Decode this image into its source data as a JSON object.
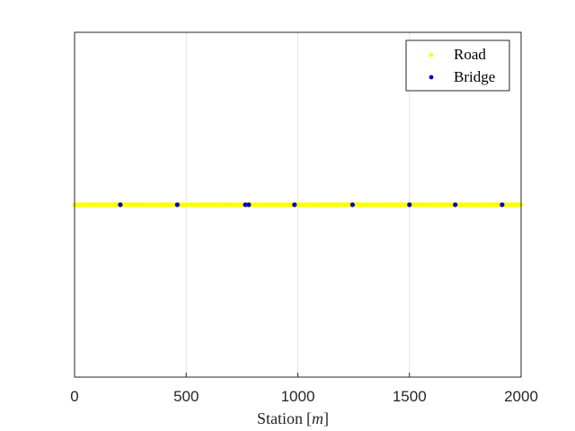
{
  "chart_data": {
    "type": "scatter",
    "title": "",
    "xlabel": "Station",
    "xlabel_unit": "m",
    "ylabel": "",
    "xlim": [
      0,
      2000
    ],
    "x_ticks": [
      0,
      500,
      1000,
      1500,
      2000
    ],
    "x_tick_labels": [
      "0",
      "500",
      "1000",
      "1500",
      "2000"
    ],
    "ylim": [
      -1,
      1
    ],
    "y_ticks_visible": false,
    "grid": "vertical",
    "legend_placement": "top-right",
    "series": [
      {
        "name": "Road",
        "color": "#ffff00",
        "marker": "dot",
        "x_range": [
          0,
          2000
        ],
        "y": 0,
        "continuous": true
      },
      {
        "name": "Bridge",
        "color": "#0000cc",
        "marker": "dot",
        "x": [
          205,
          460,
          765,
          780,
          985,
          1245,
          1500,
          1705,
          1915
        ],
        "y": [
          0,
          0,
          0,
          0,
          0,
          0,
          0,
          0,
          0
        ]
      }
    ]
  }
}
